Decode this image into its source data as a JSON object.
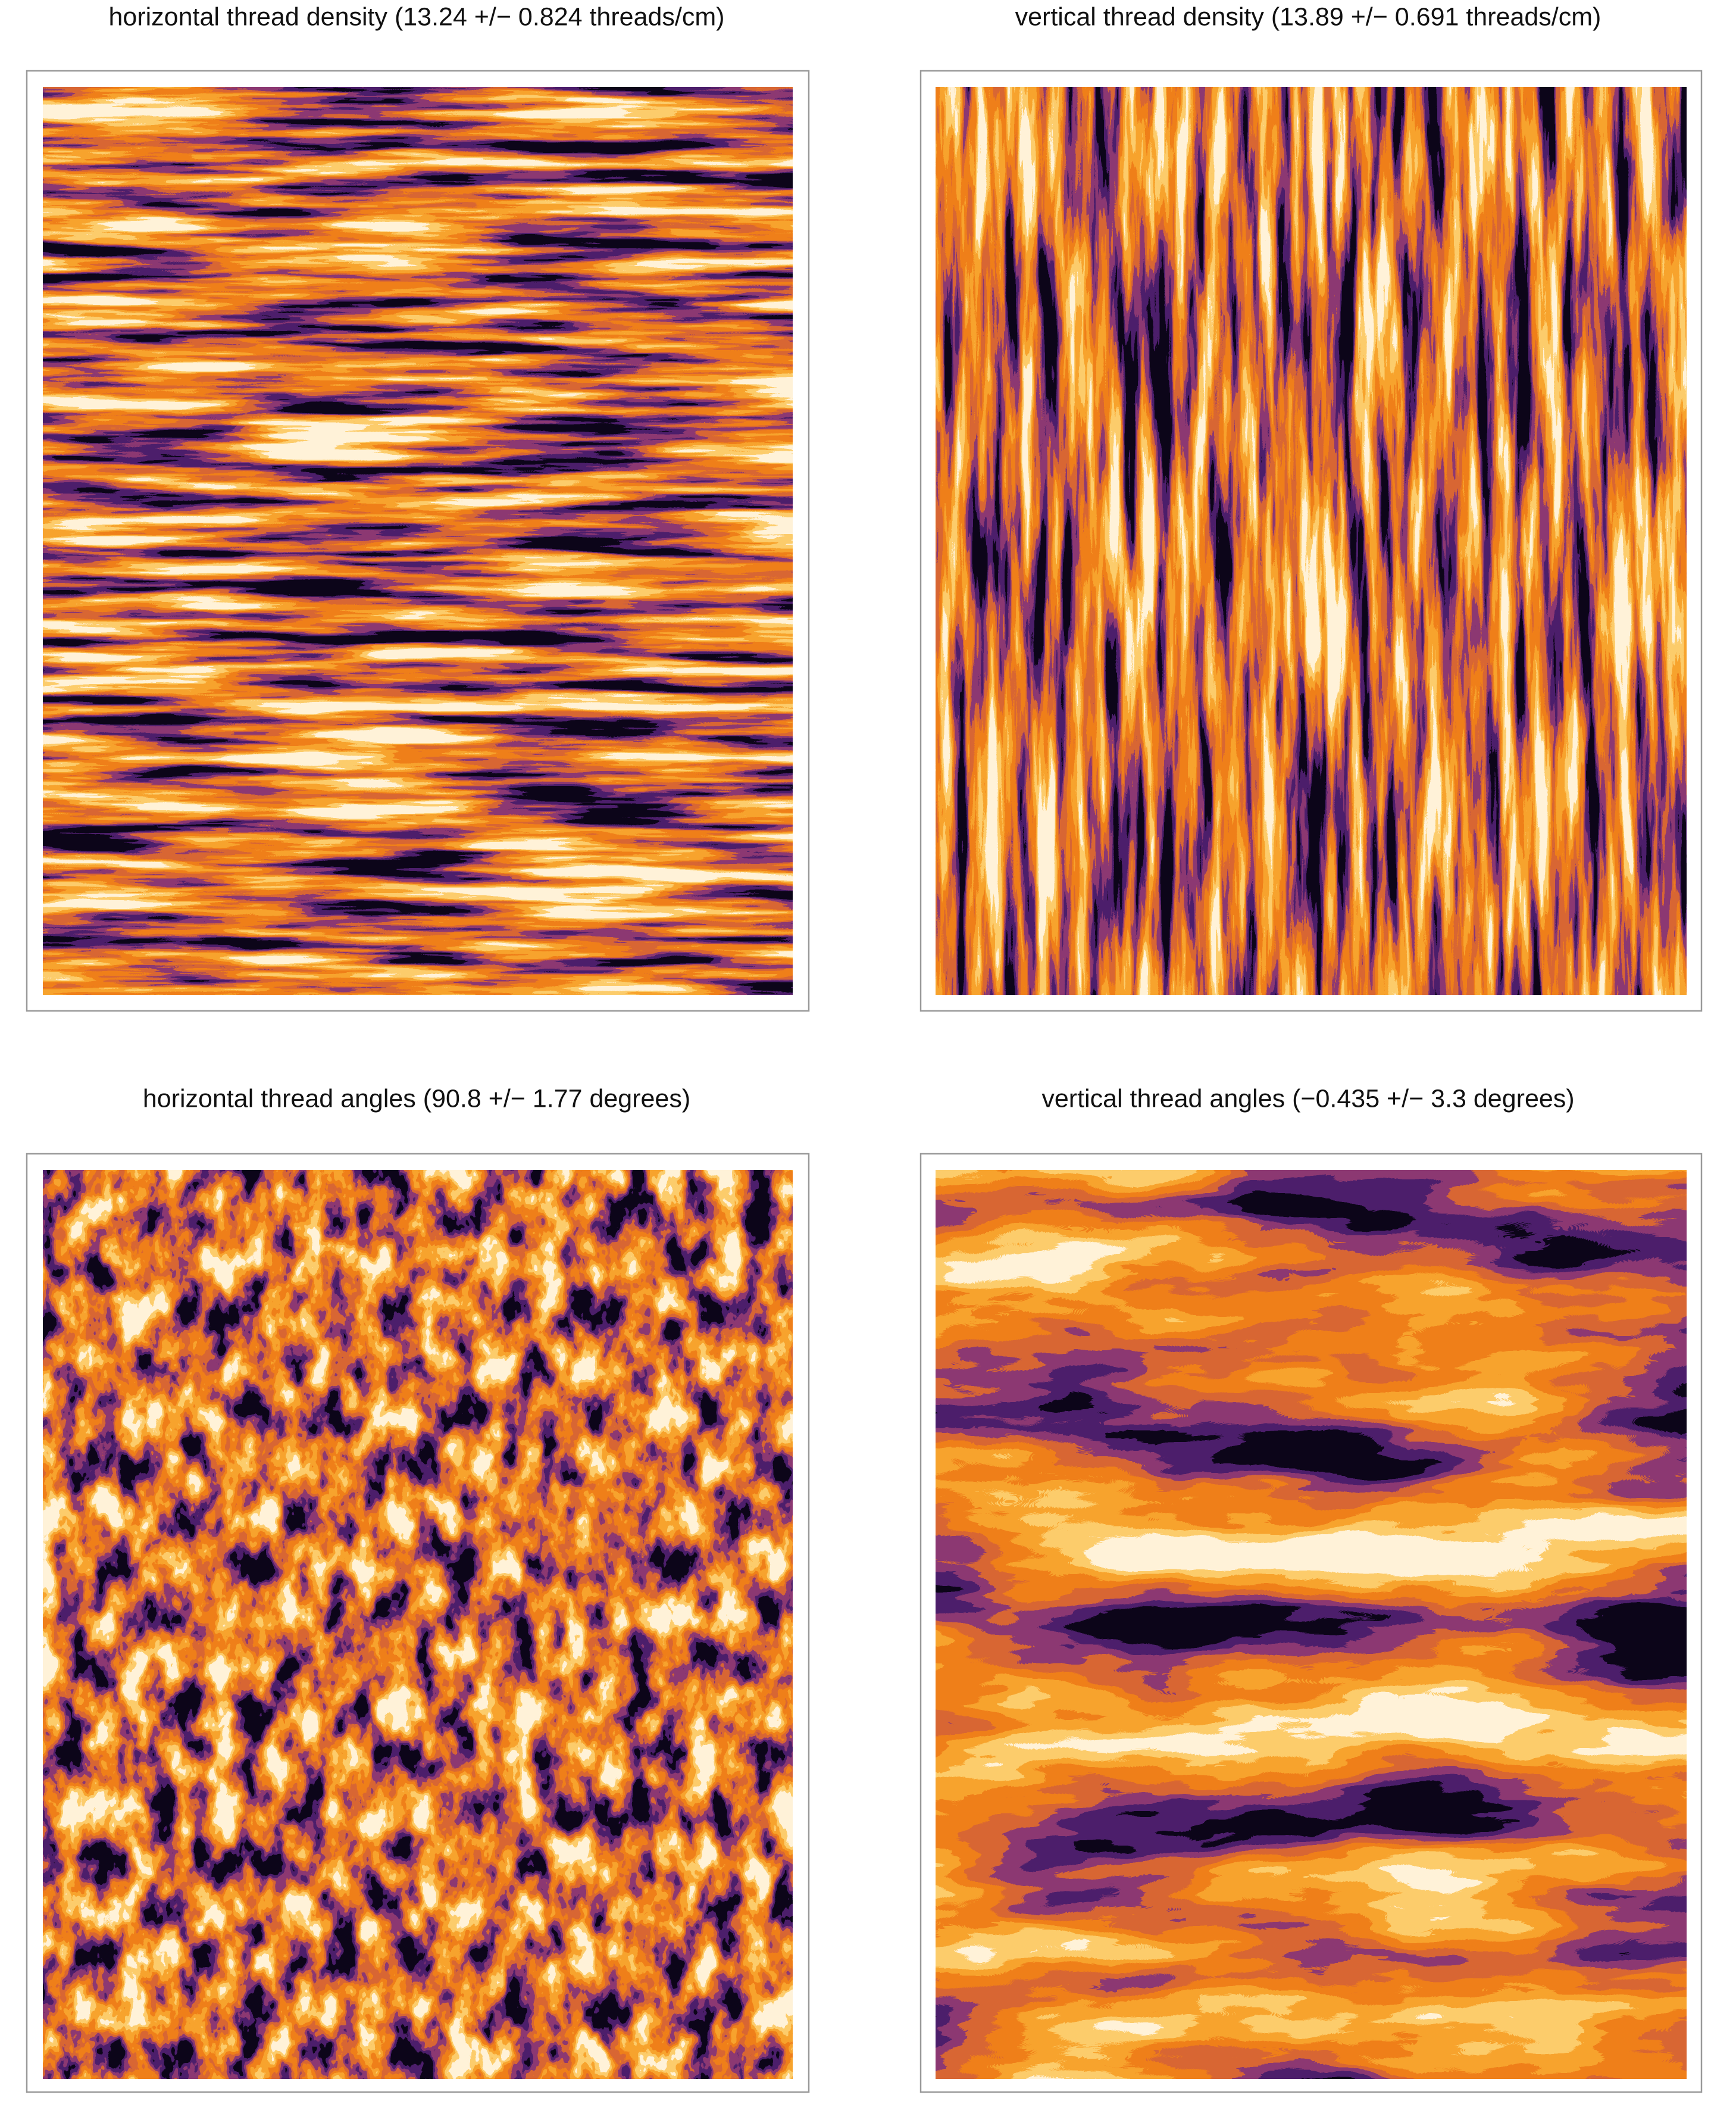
{
  "panels": [
    {
      "title": "horizontal thread density (13.24 +/− 0.824 threads/cm)"
    },
    {
      "title": "vertical thread density (13.89 +/− 0.691 threads/cm)"
    },
    {
      "title": "horizontal thread angles (90.8 +/− 1.77 degrees)"
    },
    {
      "title": "vertical thread angles (−0.435 +/− 3.3 degrees)"
    }
  ]
}
